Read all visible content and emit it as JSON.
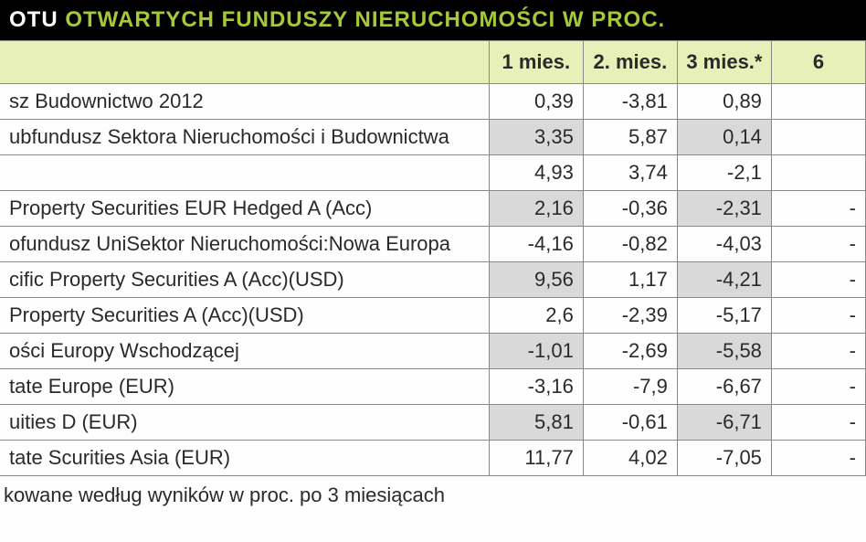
{
  "title": {
    "part1": "OTU ",
    "part2": "OTWARTYCH FUNDUSZY NIERUCHOMOŚCI W PROC."
  },
  "columns": {
    "fund": "",
    "c1": "1 mies.",
    "c2": "2. mies.",
    "c3": "3 mies.*",
    "c4": "6"
  },
  "rows": [
    {
      "name": "sz Budownictwo 2012",
      "v1": "0,39",
      "v2": "-3,81",
      "v3": "0,89",
      "v4": ""
    },
    {
      "name": "ubfundusz Sektora Nieruchomości i Budownictwa",
      "v1": "3,35",
      "v2": "5,87",
      "v3": "0,14",
      "v4": ""
    },
    {
      "name": "",
      "v1": "4,93",
      "v2": "3,74",
      "v3": "-2,1",
      "v4": ""
    },
    {
      "name": "Property Securities EUR Hedged A (Acc)",
      "v1": "2,16",
      "v2": "-0,36",
      "v3": "-2,31",
      "v4": "-"
    },
    {
      "name": "ofundusz UniSektor Nieruchomości:Nowa Europa",
      "v1": "-4,16",
      "v2": "-0,82",
      "v3": "-4,03",
      "v4": "-"
    },
    {
      "name": "cific Property Securities A (Acc)(USD)",
      "v1": "9,56",
      "v2": "1,17",
      "v3": "-4,21",
      "v4": "-"
    },
    {
      "name": "Property Securities A (Acc)(USD)",
      "v1": "2,6",
      "v2": "-2,39",
      "v3": "-5,17",
      "v4": "-"
    },
    {
      "name": "ości Europy Wschodzącej",
      "v1": "-1,01",
      "v2": "-2,69",
      "v3": "-5,58",
      "v4": "-"
    },
    {
      "name": "tate Europe (EUR)",
      "v1": "-3,16",
      "v2": "-7,9",
      "v3": "-6,67",
      "v4": "-"
    },
    {
      "name": "uities D (EUR)",
      "v1": "5,81",
      "v2": "-0,61",
      "v3": "-6,71",
      "v4": "-"
    },
    {
      "name": "tate Scurities Asia (EUR)",
      "v1": "11,77",
      "v2": "4,02",
      "v3": "-7,05",
      "v4": "-"
    }
  ],
  "shading": {
    "even_row_shade_cols": [
      "v1",
      "v3"
    ]
  },
  "footnote": "kowane według wyników w proc. po 3 miesiącach",
  "style": {
    "title_bg": "#000000",
    "title_part1_color": "#ffffff",
    "title_part2_color": "#a5c939",
    "header_bg": "#e7f0b8",
    "shade_bg": "#d9d9d9",
    "border_color": "#888888",
    "text_color": "#2a2a2a",
    "title_fontsize": 24,
    "cell_fontsize": 22
  }
}
